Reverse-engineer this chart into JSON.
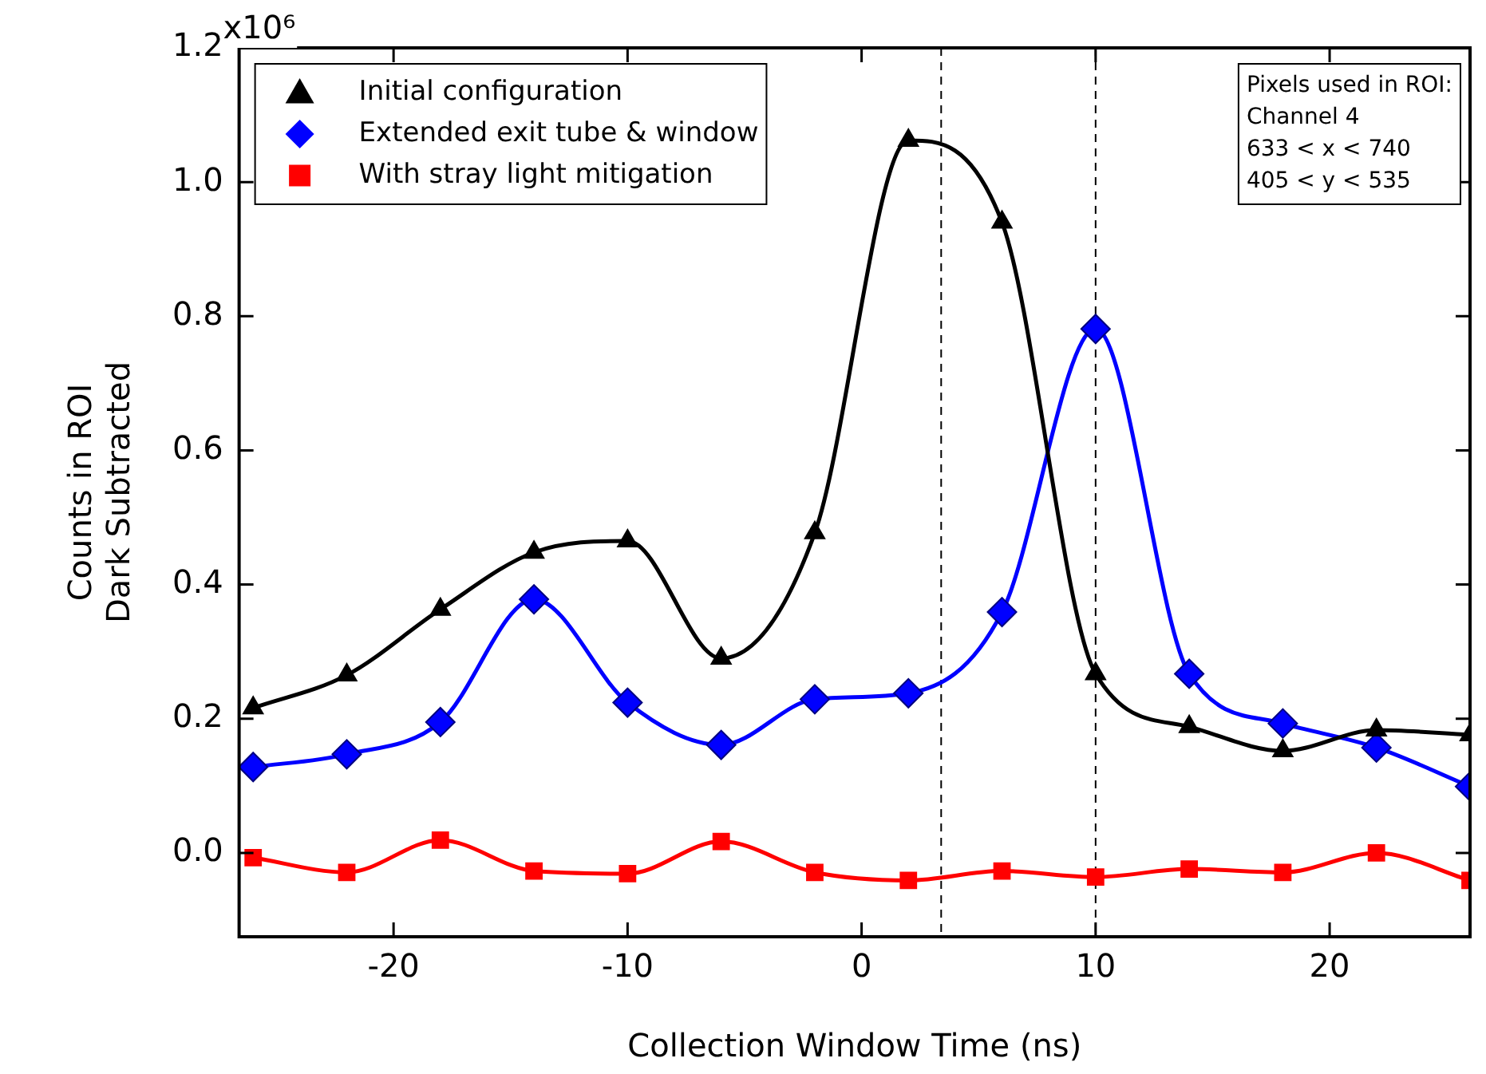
{
  "chart_data": {
    "type": "line",
    "xlabel": "Collection Window Time (ns)",
    "ylabel": "Counts in ROI\nDark Subtracted",
    "x": [
      -26,
      -22,
      -18,
      -14,
      -10,
      -6,
      -2,
      2,
      6,
      10,
      14,
      18,
      22,
      26
    ],
    "series": [
      {
        "name": "Initial configuration",
        "color": "#000000",
        "marker": "triangle",
        "values": [
          0.216,
          0.265,
          0.363,
          0.448,
          0.465,
          0.29,
          0.477,
          1.062,
          0.94,
          0.267,
          0.188,
          0.152,
          0.183,
          0.176
        ]
      },
      {
        "name": "Extended exit tube & window",
        "color": "#0000ff",
        "marker": "diamond",
        "values": [
          0.128,
          0.147,
          0.195,
          0.378,
          0.224,
          0.161,
          0.229,
          0.238,
          0.359,
          0.781,
          0.267,
          0.193,
          0.157,
          0.099
        ]
      },
      {
        "name": "With stray light mitigation",
        "color": "#ff0000",
        "marker": "square",
        "values": [
          -0.007,
          -0.029,
          0.019,
          -0.027,
          -0.031,
          0.017,
          -0.029,
          -0.041,
          -0.027,
          -0.036,
          -0.024,
          -0.029,
          0,
          -0.041
        ]
      }
    ],
    "xlim": [
      -26.6,
      26
    ],
    "xticks": [
      -20,
      -10,
      0,
      10,
      20
    ],
    "ylim": [
      -0.125,
      1.2
    ],
    "yticks": [
      {
        "value": 0,
        "label": "0.0"
      },
      0.2,
      0.4,
      0.6,
      0.8,
      {
        "value": 1,
        "label": "1.0"
      },
      1.2
    ],
    "ref_lines": [
      {
        "axis": "x",
        "value": 3.4,
        "line_style": "dashed",
        "color": "#000000"
      },
      {
        "axis": "x",
        "value": 10,
        "line_style": "dashed",
        "color": "#000000"
      }
    ],
    "annotations": [
      "x10⁶",
      "Pixels used in ROI:\nChannel 4\n633 < x < 740\n405 < y < 535"
    ],
    "legend": "top left",
    "grid": false
  }
}
